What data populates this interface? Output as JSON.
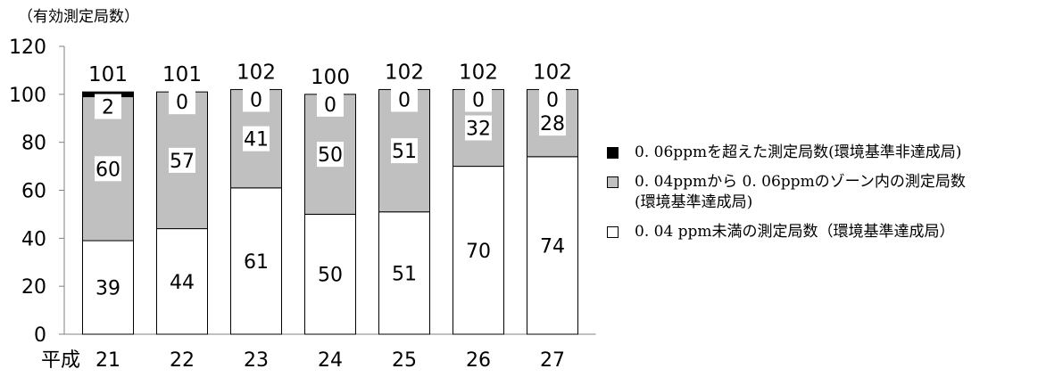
{
  "chart_data": {
    "type": "bar",
    "stacked": true,
    "unit_label": "（有効測定局数）",
    "x_prefix": "平成",
    "categories": [
      "21",
      "22",
      "23",
      "24",
      "25",
      "26",
      "27"
    ],
    "ylim": [
      0,
      120
    ],
    "yticks": [
      0,
      20,
      40,
      60,
      80,
      100,
      120
    ],
    "series": [
      {
        "name": "0. 04 ppm未満の測定局数（環境基準達成局）",
        "color": "#ffffff",
        "values": [
          39,
          44,
          61,
          50,
          51,
          70,
          74
        ]
      },
      {
        "name": "0. 04ppmから 0. 06ppmのゾーン内の測定局数\n(環境基準達成局)",
        "color": "#c0c0c0",
        "values": [
          60,
          57,
          41,
          50,
          51,
          32,
          28
        ]
      },
      {
        "name": "0. 06ppmを超えた測定局数(環境基準非達成局)",
        "color": "#000000",
        "values": [
          2,
          0,
          0,
          0,
          0,
          0,
          0
        ]
      }
    ],
    "totals": [
      101,
      101,
      102,
      100,
      102,
      102,
      102
    ],
    "legend_position": "right",
    "grid": false
  }
}
